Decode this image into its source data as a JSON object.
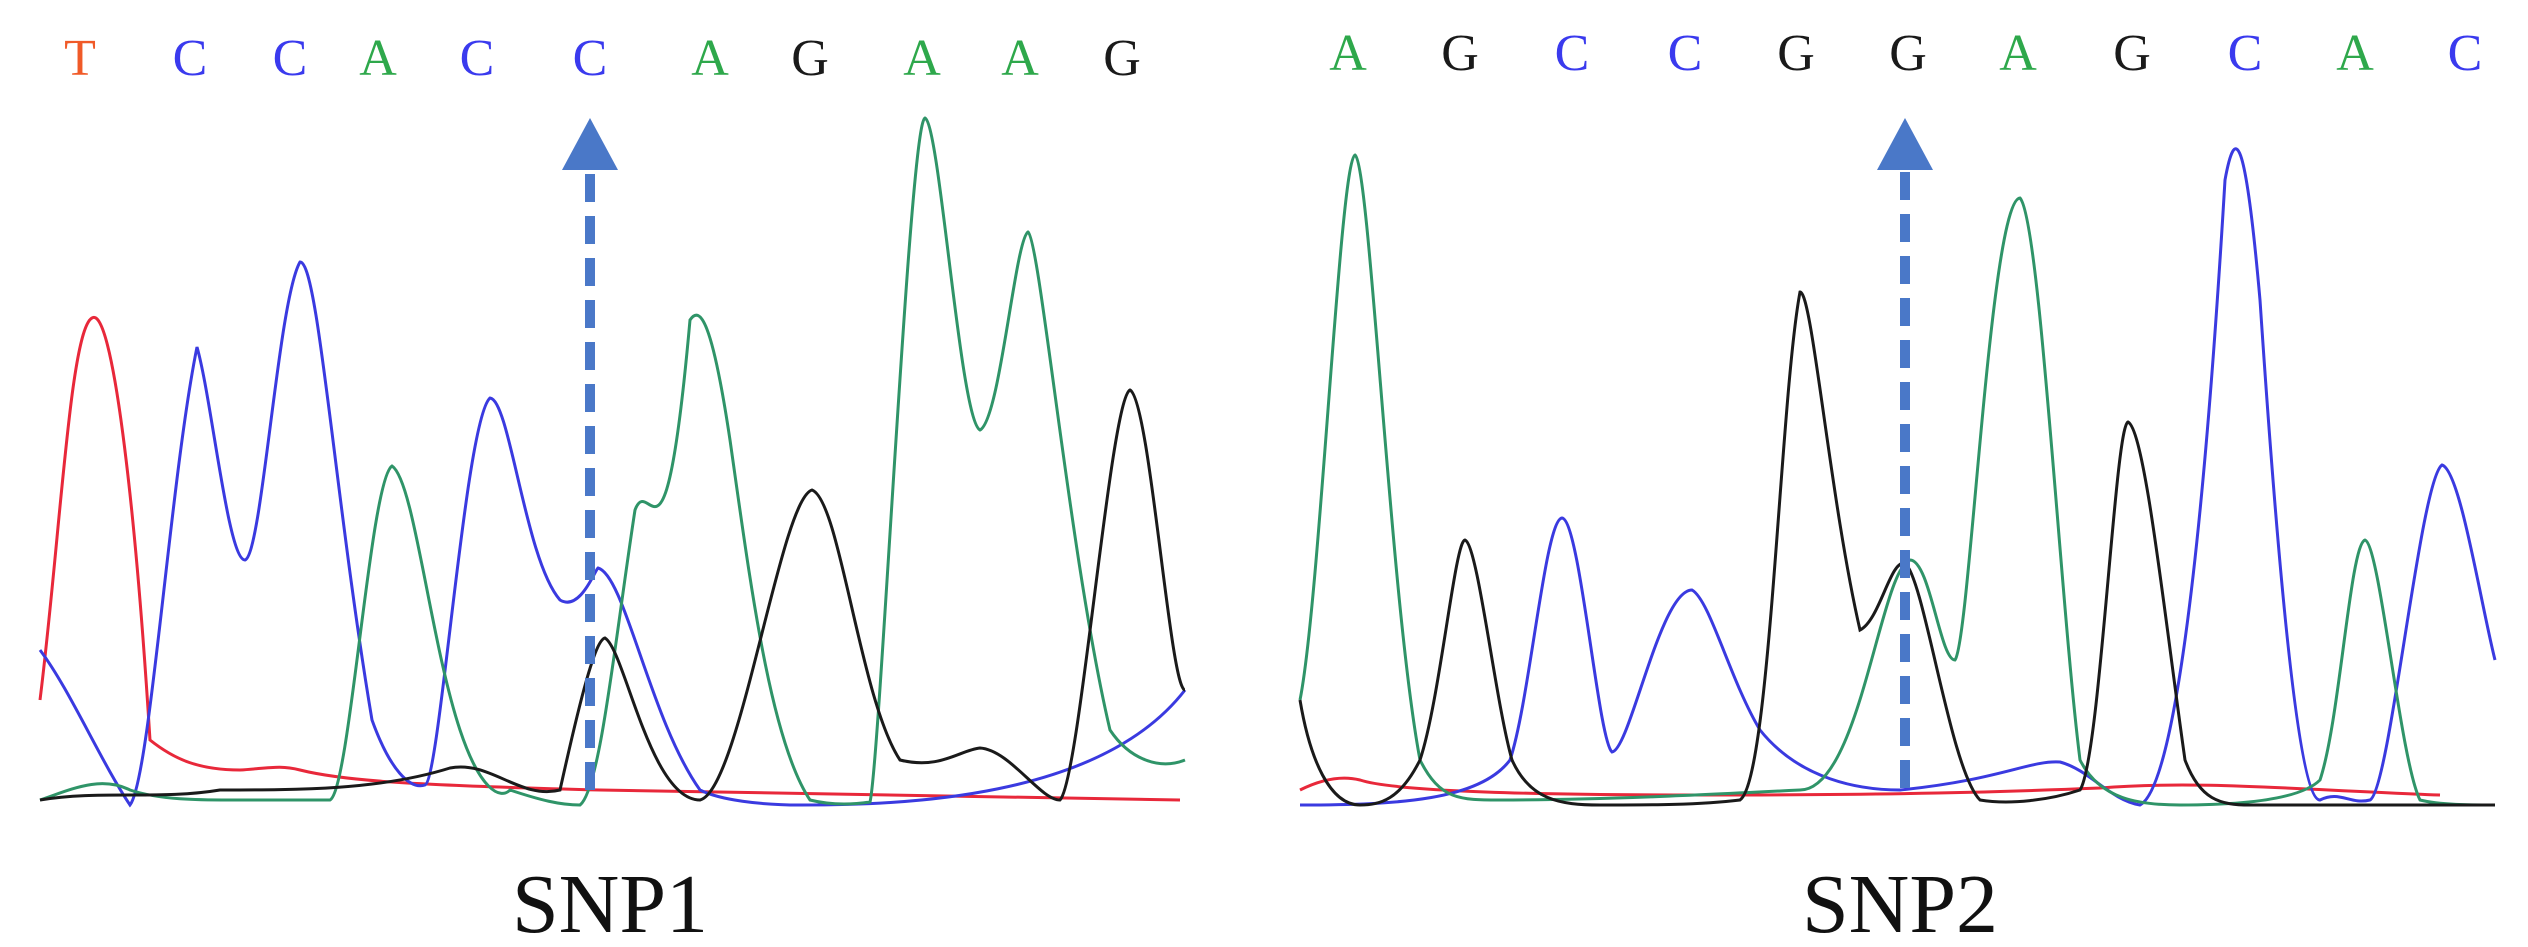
{
  "colors": {
    "A": "#2ea84b",
    "C": "#3a3aee",
    "G": "#1a1a1a",
    "T": "#f05a28",
    "arrow": "#4a78c8",
    "trace_A": "#2f9468",
    "trace_C": "#3a3ae0",
    "trace_G": "#1a1a1a",
    "trace_T": "#e8283a"
  },
  "panels": [
    {
      "label": "SNP1",
      "bases": [
        "T",
        "C",
        "C",
        "A",
        "C",
        "C",
        "A",
        "G",
        "A",
        "A",
        "G"
      ],
      "snp_index": 5
    },
    {
      "label": "SNP2",
      "bases": [
        "A",
        "G",
        "C",
        "C",
        "G",
        "G",
        "A",
        "G",
        "C",
        "A",
        "C"
      ],
      "snp_index": 5
    }
  ]
}
